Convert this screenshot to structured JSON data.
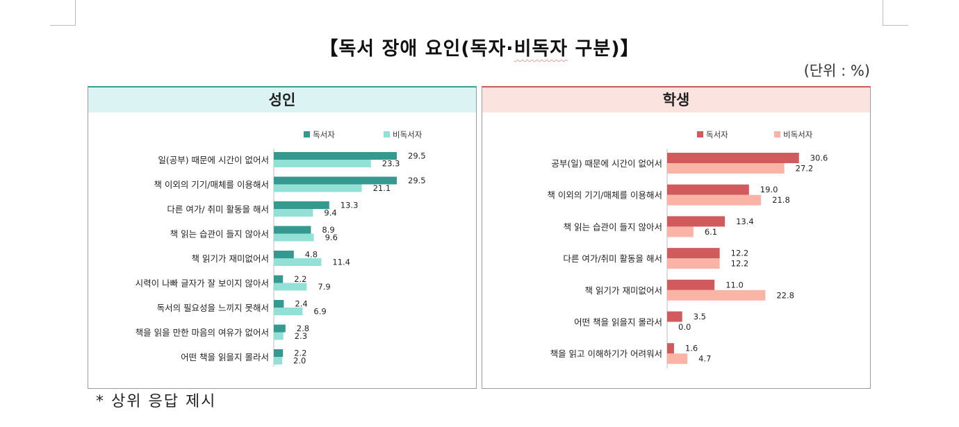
{
  "title_parts": {
    "pre": "【독서 장애 요인(독자·",
    "squiggle": "비독자",
    "post": " 구분)】"
  },
  "unit": "(단위 : %)",
  "footnote": "* 상위 응답 제시",
  "chart_data": [
    {
      "type": "bar",
      "orientation": "horizontal",
      "title": "성인",
      "legend_position": "top",
      "colors": [
        "#35998f",
        "#93e0d6"
      ],
      "categories": [
        "일(공부) 때문에 시간이 없어서",
        "책 이외의 기기/매체를 이용해서",
        "다른 여가/ 취미 활동을 해서",
        "책 읽는 습관이 들지 않아서",
        "책 읽기가 재미없어서",
        "시력이 나빠 글자가 잘 보이지 않아서",
        "독서의 필요성을 느끼지 못해서",
        "책을 읽을 만한 마음의 여유가 없어서",
        "어떤 책을 읽을지 몰라서"
      ],
      "series": [
        {
          "name": "독서자",
          "values": [
            29.5,
            29.5,
            13.3,
            8.9,
            4.8,
            2.2,
            2.4,
            2.8,
            2.2
          ]
        },
        {
          "name": "비독서자",
          "values": [
            23.3,
            21.1,
            9.4,
            9.6,
            11.4,
            7.9,
            6.9,
            2.3,
            2.0
          ]
        }
      ]
    },
    {
      "type": "bar",
      "orientation": "horizontal",
      "title": "학생",
      "legend_position": "top",
      "colors": [
        "#d15a5c",
        "#fab4a6"
      ],
      "categories": [
        "공부(일) 때문에 시간이 없어서",
        "책 이외의 기기/매체를 이용해서",
        "책 읽는 습관이 들지 않아서",
        "다른 여가/취미 활동을 해서",
        "책 읽기가 재미없어서",
        "어떤 책을 읽을지 몰라서",
        "책을 읽고 이해하기가 어려워서"
      ],
      "series": [
        {
          "name": "독서자",
          "values": [
            30.6,
            19.0,
            13.4,
            12.2,
            11.0,
            3.5,
            1.6
          ]
        },
        {
          "name": "비독서자",
          "values": [
            27.2,
            21.8,
            6.1,
            12.2,
            22.8,
            0.0,
            4.7
          ]
        }
      ]
    }
  ]
}
